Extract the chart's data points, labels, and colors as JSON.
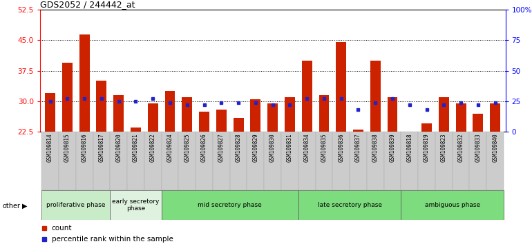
{
  "title": "GDS2052 / 244442_at",
  "samples": [
    "GSM109814",
    "GSM109815",
    "GSM109816",
    "GSM109817",
    "GSM109820",
    "GSM109821",
    "GSM109822",
    "GSM109824",
    "GSM109825",
    "GSM109826",
    "GSM109827",
    "GSM109828",
    "GSM109829",
    "GSM109830",
    "GSM109831",
    "GSM109834",
    "GSM109835",
    "GSM109836",
    "GSM109837",
    "GSM109838",
    "GSM109839",
    "GSM109818",
    "GSM109819",
    "GSM109823",
    "GSM109832",
    "GSM109833",
    "GSM109840"
  ],
  "counts": [
    32.0,
    39.5,
    46.5,
    35.0,
    31.5,
    23.5,
    29.5,
    32.5,
    31.0,
    27.5,
    28.0,
    26.0,
    30.5,
    29.5,
    31.0,
    40.0,
    31.5,
    44.5,
    23.0,
    40.0,
    31.0,
    22.5,
    24.5,
    31.0,
    29.5,
    27.0,
    29.5
  ],
  "percentiles_pct": [
    25,
    27,
    27,
    27,
    25,
    25,
    27,
    24,
    22,
    22,
    24,
    24,
    24,
    22,
    22,
    27,
    27,
    27,
    18,
    24,
    27,
    22,
    18,
    22,
    24,
    22,
    24
  ],
  "phases": [
    {
      "label": "proliferative phase",
      "start": 0,
      "end": 3,
      "color": "#c8ecc8"
    },
    {
      "label": "early secretory\nphase",
      "start": 4,
      "end": 6,
      "color": "#dff2df"
    },
    {
      "label": "mid secretory phase",
      "start": 7,
      "end": 14,
      "color": "#7ddc7d"
    },
    {
      "label": "late secretory phase",
      "start": 15,
      "end": 20,
      "color": "#7ddc7d"
    },
    {
      "label": "ambiguous phase",
      "start": 21,
      "end": 26,
      "color": "#7ddc7d"
    }
  ],
  "ylim_left": [
    22.5,
    52.5
  ],
  "yticks_left": [
    22.5,
    30.0,
    37.5,
    45.0,
    52.5
  ],
  "bar_color": "#cc2200",
  "dot_color": "#2222cc",
  "tick_bg_color": "#cccccc",
  "legend_count_label": "count",
  "legend_pct_label": "percentile rank within the sample",
  "other_label": "other"
}
